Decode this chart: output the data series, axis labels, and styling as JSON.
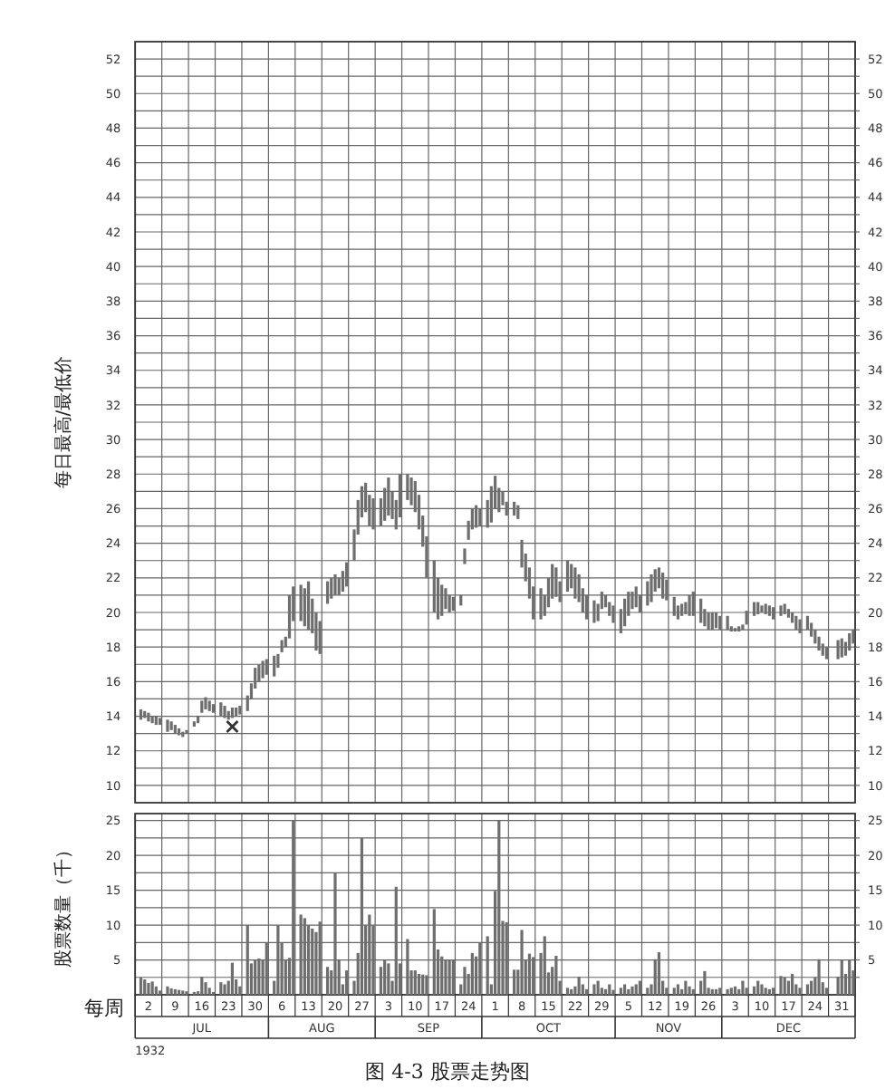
{
  "chart_data": [
    {
      "type": "bar",
      "ylabel": "每日最高/最低价",
      "grid": true,
      "tick_labels": "y",
      "xlim": [
        "1932-06-26",
        "1933-01-01"
      ],
      "xticks": [
        {
          "value": "1932-06-26",
          "label": null
        },
        {
          "value": "1932-07-03",
          "label": null
        },
        {
          "value": "1932-07-10",
          "label": null
        },
        {
          "value": "1932-07-17",
          "label": null
        },
        {
          "value": "1932-07-24",
          "label": null
        },
        {
          "value": "1932-07-31",
          "label": null
        },
        {
          "value": "1932-08-07",
          "label": null
        },
        {
          "value": "1932-08-14",
          "label": null
        },
        {
          "value": "1932-08-21",
          "label": null
        },
        {
          "value": "1932-08-28",
          "label": null
        },
        {
          "value": "1932-09-04",
          "label": null
        },
        {
          "value": "1932-09-11",
          "label": null
        },
        {
          "value": "1932-09-18",
          "label": null
        },
        {
          "value": "1932-09-25",
          "label": null
        },
        {
          "value": "1932-10-02",
          "label": null
        },
        {
          "value": "1932-10-09",
          "label": null
        },
        {
          "value": "1932-10-16",
          "label": null
        },
        {
          "value": "1932-10-23",
          "label": null
        },
        {
          "value": "1932-10-30",
          "label": null
        },
        {
          "value": "1932-11-06",
          "label": null
        },
        {
          "value": "1932-11-13",
          "label": null
        },
        {
          "value": "1932-11-20",
          "label": null
        },
        {
          "value": "1932-11-27",
          "label": null
        },
        {
          "value": "1932-12-04",
          "label": null
        },
        {
          "value": "1932-12-11",
          "label": null
        },
        {
          "value": "1932-12-18",
          "label": null
        },
        {
          "value": "1932-12-25",
          "label": null
        },
        {
          "value": "1933-01-01",
          "label": null
        }
      ],
      "ylim": [
        9,
        53
      ],
      "yticks": [
        10,
        {
          "value": 11,
          "label": null
        },
        12,
        {
          "value": 13,
          "label": null
        },
        14,
        {
          "value": 15,
          "label": null
        },
        16,
        {
          "value": 17,
          "label": null
        },
        18,
        {
          "value": 19,
          "label": null
        },
        20,
        {
          "value": 21,
          "label": null
        },
        22,
        {
          "value": 23,
          "label": null
        },
        24,
        {
          "value": 25,
          "label": null
        },
        26,
        {
          "value": 27,
          "label": null
        },
        28,
        {
          "value": 29,
          "label": null
        },
        30,
        {
          "value": 31,
          "label": null
        },
        32,
        {
          "value": 33,
          "label": null
        },
        34,
        {
          "value": 35,
          "label": null
        },
        36,
        {
          "value": 37,
          "label": null
        },
        38,
        {
          "value": 39,
          "label": null
        },
        40,
        {
          "value": 41,
          "label": null
        },
        42,
        {
          "value": 43,
          "label": null
        },
        44,
        {
          "value": 45,
          "label": null
        },
        46,
        {
          "value": 47,
          "label": null
        },
        48,
        {
          "value": 49,
          "label": null
        },
        50,
        {
          "value": 51,
          "label": null
        },
        52
      ],
      "y2lim": [
        9,
        53
      ],
      "y2ticks": [
        10,
        {
          "value": 11,
          "label": null
        },
        12,
        {
          "value": 13,
          "label": null
        },
        14,
        {
          "value": 15,
          "label": null
        },
        16,
        {
          "value": 17,
          "label": null
        },
        18,
        {
          "value": 19,
          "label": null
        },
        20,
        {
          "value": 21,
          "label": null
        },
        22,
        {
          "value": 23,
          "label": null
        },
        24,
        {
          "value": 25,
          "label": null
        },
        26,
        {
          "value": 27,
          "label": null
        },
        28,
        {
          "value": 29,
          "label": null
        },
        30,
        {
          "value": 31,
          "label": null
        },
        32,
        {
          "value": 33,
          "label": null
        },
        34,
        {
          "value": 35,
          "label": null
        },
        36,
        {
          "value": 37,
          "label": null
        },
        38,
        {
          "value": 39,
          "label": null
        },
        40,
        {
          "value": 41,
          "label": null
        },
        42,
        {
          "value": 43,
          "label": null
        },
        44,
        {
          "value": 45,
          "label": null
        },
        46,
        {
          "value": 47,
          "label": null
        },
        48,
        {
          "value": 49,
          "label": null
        },
        50,
        {
          "value": 51,
          "label": null
        },
        52
      ],
      "x": [
        "1932-06-27",
        "1932-06-28",
        "1932-06-29",
        "1932-06-30",
        "1932-07-01",
        "1932-07-02",
        "1932-07-04",
        "1932-07-05",
        "1932-07-06",
        "1932-07-07",
        "1932-07-08",
        "1932-07-09",
        "1932-07-11",
        "1932-07-12",
        "1932-07-13",
        "1932-07-14",
        "1932-07-15",
        "1932-07-16",
        "1932-07-18",
        "1932-07-19",
        "1932-07-20",
        "1932-07-21",
        "1932-07-22",
        "1932-07-23",
        "1932-07-25",
        "1932-07-26",
        "1932-07-27",
        "1932-07-28",
        "1932-07-29",
        "1932-07-30",
        "1932-08-01",
        "1932-08-02",
        "1932-08-03",
        "1932-08-04",
        "1932-08-05",
        "1932-08-06",
        "1932-08-08",
        "1932-08-09",
        "1932-08-10",
        "1932-08-11",
        "1932-08-12",
        "1932-08-13",
        "1932-08-15",
        "1932-08-16",
        "1932-08-17",
        "1932-08-18",
        "1932-08-19",
        "1932-08-20",
        "1932-08-22",
        "1932-08-23",
        "1932-08-24",
        "1932-08-25",
        "1932-08-26",
        "1932-08-27",
        "1932-08-29",
        "1932-08-30",
        "1932-08-31",
        "1932-09-01",
        "1932-09-02",
        "1932-09-03",
        "1932-09-05",
        "1932-09-06",
        "1932-09-07",
        "1932-09-08",
        "1932-09-09",
        "1932-09-10",
        "1932-09-12",
        "1932-09-13",
        "1932-09-14",
        "1932-09-15",
        "1932-09-16",
        "1932-09-17",
        "1932-09-19",
        "1932-09-20",
        "1932-09-21",
        "1932-09-22",
        "1932-09-23",
        "1932-09-24",
        "1932-09-26",
        "1932-09-27",
        "1932-09-28",
        "1932-09-29",
        "1932-09-30",
        "1932-10-01",
        "1932-10-03",
        "1932-10-04",
        "1932-10-05",
        "1932-10-06",
        "1932-10-07",
        "1932-10-08",
        "1932-10-10",
        "1932-10-11",
        "1932-10-12",
        "1932-10-13",
        "1932-10-14",
        "1932-10-15",
        "1932-10-17",
        "1932-10-18",
        "1932-10-19",
        "1932-10-20",
        "1932-10-21",
        "1932-10-22",
        "1932-10-24",
        "1932-10-25",
        "1932-10-26",
        "1932-10-27",
        "1932-10-28",
        "1932-10-29",
        "1932-10-31",
        "1932-11-01",
        "1932-11-02",
        "1932-11-03",
        "1932-11-04",
        "1932-11-05",
        "1932-11-07",
        "1932-11-08",
        "1932-11-09",
        "1932-11-10",
        "1932-11-11",
        "1932-11-12",
        "1932-11-14",
        "1932-11-15",
        "1932-11-16",
        "1932-11-17",
        "1932-11-18",
        "1932-11-19",
        "1932-11-21",
        "1932-11-22",
        "1932-11-23",
        "1932-11-24",
        "1932-11-25",
        "1932-11-26",
        "1932-11-28",
        "1932-11-29",
        "1932-11-30",
        "1932-12-01",
        "1932-12-02",
        "1932-12-03",
        "1932-12-05",
        "1932-12-06",
        "1932-12-07",
        "1932-12-08",
        "1932-12-09",
        "1932-12-10",
        "1932-12-12",
        "1932-12-13",
        "1932-12-14",
        "1932-12-15",
        "1932-12-16",
        "1932-12-17",
        "1932-12-19",
        "1932-12-20",
        "1932-12-21",
        "1932-12-22",
        "1932-12-23",
        "1932-12-24",
        "1932-12-27",
        "1932-12-28",
        "1932-12-29",
        "1932-12-30",
        "1932-12-31"
      ],
      "series": [
        {
          "color": "#6e6e6e",
          "base": [
            13.8,
            13.9,
            13.7,
            13.6,
            13.5,
            13.5,
            13.1,
            13.2,
            13.0,
            12.9,
            12.8,
            13.0,
            13.4,
            13.6,
            14.2,
            14.4,
            14.3,
            14.2,
            14.0,
            13.9,
            13.8,
            13.9,
            14.0,
            14.1,
            14.3,
            15.0,
            15.6,
            16.0,
            16.2,
            16.4,
            16.3,
            16.8,
            17.7,
            18.0,
            18.5,
            19.5,
            19.5,
            19.2,
            19.0,
            18.8,
            17.8,
            17.6,
            20.5,
            20.8,
            21.0,
            21.0,
            21.2,
            21.5,
            23.0,
            24.5,
            25.5,
            25.8,
            25.0,
            24.8,
            25.0,
            25.3,
            25.6,
            25.4,
            24.8,
            25.5,
            26.5,
            26.2,
            25.8,
            24.8,
            23.8,
            22.0,
            20.0,
            19.6,
            19.8,
            20.2,
            20.0,
            20.1,
            20.4,
            22.8,
            24.2,
            24.8,
            24.9,
            25.0,
            24.9,
            25.2,
            26.0,
            25.8,
            26.2,
            25.6,
            25.6,
            25.4,
            22.6,
            21.8,
            20.8,
            19.6,
            19.6,
            19.8,
            20.3,
            20.8,
            20.9,
            20.6,
            21.2,
            21.4,
            20.8,
            20.6,
            20.0,
            19.6,
            19.4,
            19.5,
            20.2,
            20.3,
            19.8,
            19.4,
            18.8,
            19.2,
            19.8,
            20.2,
            20.3,
            20.0,
            20.4,
            20.6,
            21.2,
            21.4,
            20.8,
            20.7,
            19.8,
            19.6,
            19.8,
            19.9,
            19.8,
            19.8,
            19.4,
            19.2,
            19.0,
            19.0,
            19.1,
            19.0,
            19.0,
            18.9,
            18.9,
            18.9,
            19.0,
            19.3,
            19.8,
            19.9,
            20.0,
            19.9,
            19.8,
            19.6,
            19.8,
            19.9,
            19.7,
            19.4,
            19.0,
            18.8,
            19.0,
            18.6,
            18.2,
            17.8,
            17.5,
            17.3,
            17.3,
            17.4,
            17.5,
            17.8,
            18.2
          ],
          "values": [
            0.6,
            0.4,
            0.5,
            0.4,
            0.5,
            0.4,
            0.7,
            0.5,
            0.5,
            0.4,
            0.3,
            0.2,
            0.3,
            0.4,
            0.7,
            0.7,
            0.6,
            0.5,
            0.8,
            0.7,
            0.5,
            0.6,
            0.5,
            0.5,
            0.9,
            0.9,
            1.2,
            1.0,
            1.0,
            0.9,
            1.2,
            0.8,
            0.7,
            0.6,
            2.5,
            2.0,
            2.1,
            2.2,
            2.8,
            2.0,
            2.2,
            1.9,
            1.3,
            1.2,
            1.2,
            1.0,
            1.2,
            1.4,
            1.8,
            2.0,
            1.8,
            1.7,
            1.8,
            1.8,
            1.6,
            1.9,
            2.2,
            1.6,
            1.7,
            2.5,
            1.5,
            1.6,
            1.8,
            2.0,
            1.8,
            2.4,
            3.0,
            2.4,
            1.8,
            1.2,
            1.0,
            0.8,
            0.6,
            0.9,
            1.1,
            1.2,
            1.3,
            1.0,
            1.6,
            2.1,
            1.9,
            1.4,
            0.8,
            0.8,
            0.8,
            0.8,
            1.6,
            1.6,
            1.8,
            1.9,
            1.8,
            1.2,
            1.7,
            2.0,
            1.7,
            1.2,
            1.8,
            1.4,
            1.8,
            1.6,
            1.4,
            1.4,
            1.3,
            1.0,
            1.0,
            0.7,
            0.8,
            1.0,
            1.4,
            1.6,
            1.4,
            1.0,
            1.2,
            1.0,
            1.4,
            1.6,
            1.3,
            1.2,
            1.5,
            1.2,
            1.1,
            0.8,
            0.7,
            0.7,
            1.2,
            1.4,
            1.4,
            1.0,
            1.0,
            1.0,
            0.9,
            0.8,
            0.8,
            0.3,
            0.2,
            0.3,
            0.3,
            0.8,
            0.8,
            0.7,
            0.4,
            0.6,
            0.6,
            0.7,
            0.6,
            0.6,
            0.5,
            0.6,
            0.8,
            0.8,
            0.8,
            0.8,
            0.8,
            0.8,
            0.7,
            0.7,
            1.1,
            1.1,
            0.8,
            1.0,
            0.8
          ]
        },
        {
          "type": "scatter",
          "color": "#333333",
          "marker": "cross",
          "x": [
            "1932-07-21"
          ],
          "values": [
            13.4
          ]
        }
      ]
    },
    {
      "type": "bar",
      "ylabel": "股票数量（千）",
      "xlabel": "每周",
      "grid": true,
      "color": "#6e6e6e",
      "xlim": [
        "1932-06-26",
        "1933-01-01"
      ],
      "xticks": [
        {
          "value": "1932-06-26",
          "label": null
        },
        {
          "value": "1932-07-03",
          "label": null
        },
        {
          "value": "1932-07-10",
          "label": null
        },
        {
          "value": "1932-07-17",
          "label": null
        },
        {
          "value": "1932-07-24",
          "label": null
        },
        {
          "value": "1932-07-31",
          "label": null
        },
        {
          "value": "1932-08-07",
          "label": null
        },
        {
          "value": "1932-08-14",
          "label": null
        },
        {
          "value": "1932-08-21",
          "label": null
        },
        {
          "value": "1932-08-28",
          "label": null
        },
        {
          "value": "1932-09-04",
          "label": null
        },
        {
          "value": "1932-09-11",
          "label": null
        },
        {
          "value": "1932-09-18",
          "label": null
        },
        {
          "value": "1932-09-25",
          "label": null
        },
        {
          "value": "1932-10-02",
          "label": null
        },
        {
          "value": "1932-10-09",
          "label": null
        },
        {
          "value": "1932-10-16",
          "label": null
        },
        {
          "value": "1932-10-23",
          "label": null
        },
        {
          "value": "1932-10-30",
          "label": null
        },
        {
          "value": "1932-11-06",
          "label": null
        },
        {
          "value": "1932-11-13",
          "label": null
        },
        {
          "value": "1932-11-20",
          "label": null
        },
        {
          "value": "1932-11-27",
          "label": null
        },
        {
          "value": "1932-12-04",
          "label": null
        },
        {
          "value": "1932-12-11",
          "label": null
        },
        {
          "value": "1932-12-18",
          "label": null
        },
        {
          "value": "1932-12-25",
          "label": null
        },
        {
          "value": "1933-01-01",
          "label": null
        },
        {
          "value": "1932-06-29T12:00",
          "label": "2"
        },
        {
          "value": "1932-07-06T12:00",
          "label": "9"
        },
        {
          "value": "1932-07-13T12:00",
          "label": "16"
        },
        {
          "value": "1932-07-20T12:00",
          "label": "23"
        },
        {
          "value": "1932-07-27T12:00",
          "label": "30"
        },
        {
          "value": "1932-08-03T12:00",
          "label": "6"
        },
        {
          "value": "1932-08-10T12:00",
          "label": "13"
        },
        {
          "value": "1932-08-17T12:00",
          "label": "20"
        },
        {
          "value": "1932-08-24T12:00",
          "label": "27"
        },
        {
          "value": "1932-08-31T12:00",
          "label": "3"
        },
        {
          "value": "1932-09-07T12:00",
          "label": "10"
        },
        {
          "value": "1932-09-14T12:00",
          "label": "17"
        },
        {
          "value": "1932-09-21T12:00",
          "label": "24"
        },
        {
          "value": "1932-09-28T12:00",
          "label": "1"
        },
        {
          "value": "1932-10-05T12:00",
          "label": "8"
        },
        {
          "value": "1932-10-12T12:00",
          "label": "15"
        },
        {
          "value": "1932-10-19T12:00",
          "label": "22"
        },
        {
          "value": "1932-10-26T12:00",
          "label": "29"
        },
        {
          "value": "1932-11-02T12:00",
          "label": "5"
        },
        {
          "value": "1932-11-09T12:00",
          "label": "12"
        },
        {
          "value": "1932-11-16T12:00",
          "label": "19"
        },
        {
          "value": "1932-11-23T12:00",
          "label": "26"
        },
        {
          "value": "1932-11-30T12:00",
          "label": "3"
        },
        {
          "value": "1932-12-07T12:00",
          "label": "10"
        },
        {
          "value": "1932-12-14T12:00",
          "label": "17"
        },
        {
          "value": "1932-12-21T12:00",
          "label": "24"
        },
        {
          "value": "1932-12-28T12:00",
          "label": "31"
        }
      ],
      "ylim": [
        0,
        26
      ],
      "yticks": [
        {
          "value": 2.5,
          "label": null
        },
        5,
        {
          "value": 7.5,
          "label": null
        },
        10,
        {
          "value": 12.5,
          "label": null
        },
        15,
        {
          "value": 17.5,
          "label": null
        },
        20,
        {
          "value": 22.5,
          "label": null
        },
        25
      ],
      "y2lim": [
        0,
        26
      ],
      "y2ticks": [
        {
          "value": 2.5,
          "label": null
        },
        5,
        {
          "value": 7.5,
          "label": null
        },
        10,
        {
          "value": 12.5,
          "label": null
        },
        15,
        {
          "value": 17.5,
          "label": null
        },
        20,
        {
          "value": 22.5,
          "label": null
        },
        25
      ],
      "x": [
        "1932-06-27",
        "1932-06-28",
        "1932-06-29",
        "1932-06-30",
        "1932-07-01",
        "1932-07-02",
        "1932-07-04",
        "1932-07-05",
        "1932-07-06",
        "1932-07-07",
        "1932-07-08",
        "1932-07-09",
        "1932-07-11",
        "1932-07-12",
        "1932-07-13",
        "1932-07-14",
        "1932-07-15",
        "1932-07-16",
        "1932-07-18",
        "1932-07-19",
        "1932-07-20",
        "1932-07-21",
        "1932-07-22",
        "1932-07-23",
        "1932-07-25",
        "1932-07-26",
        "1932-07-27",
        "1932-07-28",
        "1932-07-29",
        "1932-07-30",
        "1932-08-01",
        "1932-08-02",
        "1932-08-03",
        "1932-08-04",
        "1932-08-05",
        "1932-08-06",
        "1932-08-08",
        "1932-08-09",
        "1932-08-10",
        "1932-08-11",
        "1932-08-12",
        "1932-08-13",
        "1932-08-15",
        "1932-08-16",
        "1932-08-17",
        "1932-08-18",
        "1932-08-19",
        "1932-08-20",
        "1932-08-22",
        "1932-08-23",
        "1932-08-24",
        "1932-08-25",
        "1932-08-26",
        "1932-08-27",
        "1932-08-29",
        "1932-08-30",
        "1932-08-31",
        "1932-09-01",
        "1932-09-02",
        "1932-09-03",
        "1932-09-05",
        "1932-09-06",
        "1932-09-07",
        "1932-09-08",
        "1932-09-09",
        "1932-09-10",
        "1932-09-12",
        "1932-09-13",
        "1932-09-14",
        "1932-09-15",
        "1932-09-16",
        "1932-09-17",
        "1932-09-19",
        "1932-09-20",
        "1932-09-21",
        "1932-09-22",
        "1932-09-23",
        "1932-09-24",
        "1932-09-26",
        "1932-09-27",
        "1932-09-28",
        "1932-09-29",
        "1932-09-30",
        "1932-10-01",
        "1932-10-03",
        "1932-10-04",
        "1932-10-05",
        "1932-10-06",
        "1932-10-07",
        "1932-10-08",
        "1932-10-10",
        "1932-10-11",
        "1932-10-12",
        "1932-10-13",
        "1932-10-14",
        "1932-10-15",
        "1932-10-17",
        "1932-10-18",
        "1932-10-19",
        "1932-10-20",
        "1932-10-21",
        "1932-10-22",
        "1932-10-24",
        "1932-10-25",
        "1932-10-26",
        "1932-10-27",
        "1932-10-28",
        "1932-10-29",
        "1932-10-31",
        "1932-11-01",
        "1932-11-02",
        "1932-11-03",
        "1932-11-04",
        "1932-11-05",
        "1932-11-07",
        "1932-11-08",
        "1932-11-09",
        "1932-11-10",
        "1932-11-11",
        "1932-11-12",
        "1932-11-14",
        "1932-11-15",
        "1932-11-16",
        "1932-11-17",
        "1932-11-18",
        "1932-11-19",
        "1932-11-21",
        "1932-11-22",
        "1932-11-23",
        "1932-11-24",
        "1932-11-25",
        "1932-11-26",
        "1932-11-28",
        "1932-11-29",
        "1932-11-30",
        "1932-12-01",
        "1932-12-02",
        "1932-12-03",
        "1932-12-05",
        "1932-12-06",
        "1932-12-07",
        "1932-12-08",
        "1932-12-09",
        "1932-12-10",
        "1932-12-12",
        "1932-12-13",
        "1932-12-14",
        "1932-12-15",
        "1932-12-16",
        "1932-12-17",
        "1932-12-19",
        "1932-12-20",
        "1932-12-21",
        "1932-12-22",
        "1932-12-23",
        "1932-12-24",
        "1932-12-27",
        "1932-12-28",
        "1932-12-29",
        "1932-12-30",
        "1932-12-31"
      ],
      "values": [
        2.5,
        2.2,
        1.7,
        1.9,
        1.2,
        0.6,
        1.2,
        0.9,
        0.8,
        0.7,
        0.6,
        0.5,
        0.4,
        0.5,
        2.6,
        1.8,
        1.0,
        0.4,
        1.8,
        1.5,
        2.0,
        4.6,
        2.2,
        1.2,
        10.0,
        4.5,
        5.0,
        5.2,
        5.0,
        7.5,
        2.0,
        10.0,
        7.5,
        5.0,
        5.3,
        25.0,
        11.5,
        11.0,
        10.0,
        9.5,
        9.0,
        10.5,
        4.0,
        3.5,
        17.5,
        5.0,
        1.5,
        3.5,
        2.0,
        6.0,
        22.5,
        10.0,
        11.5,
        10.0,
        4.0,
        5.0,
        4.5,
        2.0,
        15.5,
        4.5,
        8.0,
        3.5,
        3.5,
        3.0,
        2.9,
        2.8,
        12.3,
        6.5,
        5.5,
        5.0,
        5.0,
        5.0,
        1.5,
        4.0,
        3.0,
        6.0,
        5.5,
        7.5,
        8.4,
        1.5,
        14.9,
        25.0,
        10.6,
        10.4,
        3.6,
        3.6,
        9.3,
        5.0,
        5.9,
        5.4,
        6.0,
        8.4,
        3.2,
        4.0,
        5.6,
        2.0,
        1.0,
        0.8,
        1.2,
        2.6,
        1.5,
        0.8,
        1.5,
        2.0,
        1.0,
        0.8,
        1.5,
        0.7,
        1.0,
        1.5,
        0.8,
        1.2,
        1.5,
        2.0,
        1.0,
        1.5,
        5.1,
        6.1,
        2.0,
        1.0,
        1.0,
        1.5,
        0.8,
        2.0,
        1.2,
        0.8,
        2.0,
        3.4,
        1.0,
        0.8,
        0.8,
        1.0,
        0.8,
        1.0,
        1.2,
        0.8,
        2.0,
        1.0,
        1.2,
        2.0,
        1.5,
        1.0,
        0.8,
        1.0,
        2.7,
        2.5,
        2.0,
        3.0,
        1.5,
        1.0,
        1.5,
        2.0,
        2.5,
        5.1,
        1.8,
        1.0,
        2.6,
        5.0,
        3.0,
        5.0,
        3.5
      ],
      "annotations": [
        "JUL",
        "AUG",
        "SEP",
        "OCT",
        "NOV",
        "DEC",
        "1932",
        "图 4-3 股票走势图"
      ]
    }
  ]
}
